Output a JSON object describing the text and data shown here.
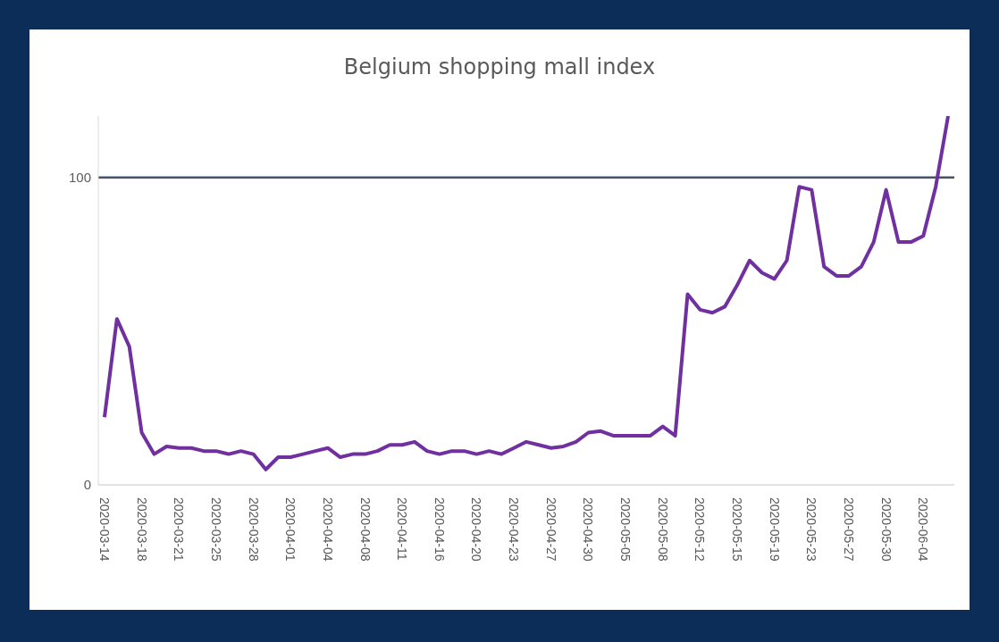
{
  "chart_data": {
    "type": "line",
    "title": "Belgium shopping mall index",
    "categories": [
      "2020-03-14",
      null,
      null,
      "2020-03-18",
      null,
      null,
      "2020-03-21",
      null,
      null,
      "2020-03-25",
      null,
      null,
      "2020-03-28",
      null,
      null,
      "2020-04-01",
      null,
      null,
      "2020-04-04",
      null,
      null,
      "2020-04-08",
      null,
      null,
      "2020-04-11",
      null,
      null,
      "2020-04-16",
      null,
      null,
      "2020-04-20",
      null,
      null,
      "2020-04-23",
      null,
      null,
      "2020-04-27",
      null,
      null,
      "2020-04-30",
      null,
      null,
      "2020-05-05",
      null,
      null,
      "2020-05-08",
      null,
      null,
      "2020-05-12",
      null,
      null,
      "2020-05-15",
      null,
      null,
      "2020-05-19",
      null,
      null,
      "2020-05-23",
      null,
      null,
      "2020-05-27",
      null,
      null,
      "2020-05-30",
      null,
      null,
      "2020-06-04",
      null,
      null
    ],
    "series": [
      {
        "color": "#7030a0",
        "values": [
          22,
          54,
          45,
          17,
          10,
          12.5,
          12,
          12,
          11,
          11,
          10,
          11,
          10,
          5,
          9,
          9,
          10,
          11,
          12,
          9,
          10,
          10,
          11,
          13,
          13,
          14,
          11,
          10,
          11,
          11,
          10,
          11,
          10,
          12,
          14,
          13,
          12,
          12.5,
          14,
          17,
          17.5,
          16,
          16,
          16,
          16,
          19,
          16,
          62,
          57,
          56,
          58,
          65,
          73,
          69,
          67,
          73,
          97,
          96,
          71,
          68,
          68,
          71,
          79,
          96,
          79,
          79,
          81,
          97,
          120
        ]
      }
    ],
    "ylim": [
      0,
      120
    ],
    "yticks": [
      0,
      100
    ],
    "marker": "none",
    "line_style": "solid",
    "ref_lines": [
      {
        "axis": "y",
        "value": 100,
        "color": "#44546a"
      }
    ]
  }
}
